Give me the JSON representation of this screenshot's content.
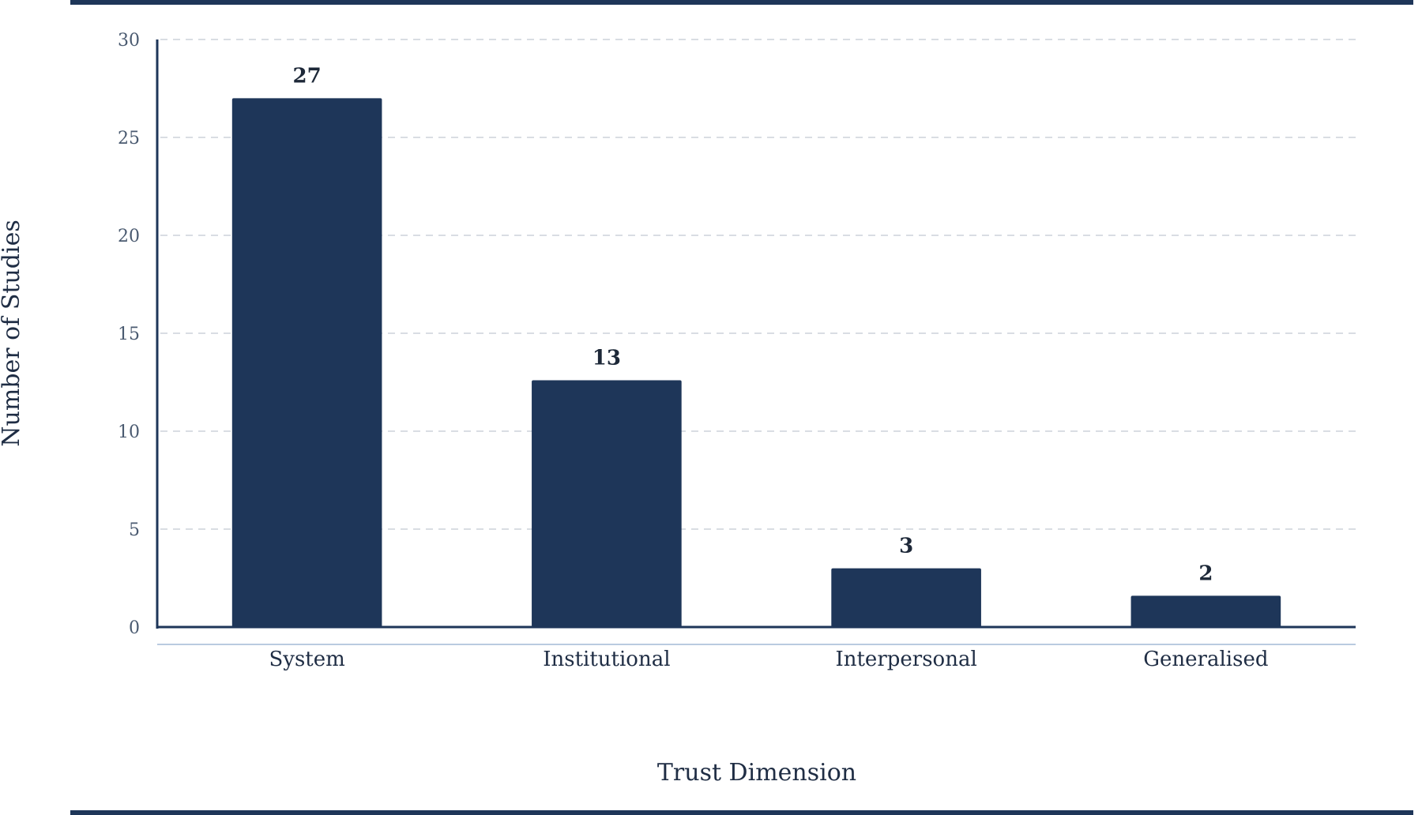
{
  "chart_data": {
    "type": "bar",
    "categories": [
      "System",
      "Institutional",
      "Interpersonal",
      "Generalised"
    ],
    "values": [
      27,
      12.6,
      3,
      1.6
    ],
    "data_labels": [
      "27",
      "13",
      "3",
      "2"
    ],
    "title": "",
    "xlabel": "Trust Dimension",
    "ylabel": "Number of Studies",
    "ylim": [
      0,
      30
    ],
    "yticks": [
      0,
      5,
      10,
      15,
      20,
      25,
      30
    ],
    "ytick_labels": [
      "0",
      "5",
      "10",
      "15",
      "20",
      "25",
      "30"
    ],
    "grid": "horizontal dashed",
    "legend": "none",
    "colors": {
      "bar": "#1e3659",
      "axis": "#1e3659",
      "frame": "#1e3659",
      "grid": "#d9dde3",
      "secondary_axis": "#b9cbe0"
    }
  }
}
